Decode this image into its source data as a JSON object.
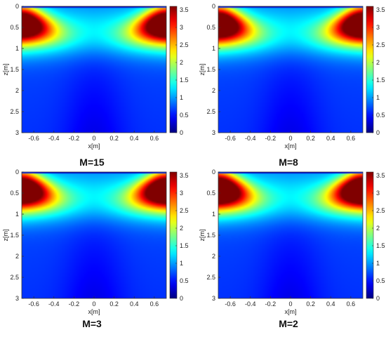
{
  "chart_data": [
    {
      "type": "heatmap",
      "title": "M=15",
      "xlabel": "x[m]",
      "ylabel": "z[m]",
      "xlim": [
        -0.72,
        0.72
      ],
      "ylim": [
        0,
        3
      ],
      "xticks": [
        "-0.6",
        "-0.4",
        "-0.2",
        "0",
        "0.2",
        "0.4",
        "0.6"
      ],
      "yticks": [
        "0",
        "0.5",
        "1",
        "1.5",
        "2",
        "2.5",
        "3"
      ],
      "colorbar": {
        "min": 0,
        "max": 3.6,
        "ticks": [
          "0",
          "0.5",
          "1",
          "1.5",
          "2",
          "2.5",
          "3",
          "3.5"
        ]
      },
      "colormap": "jet",
      "peak_value": 3.2,
      "peak_locations": [
        [
          -0.68,
          0.4
        ],
        [
          0.68,
          0.4
        ]
      ]
    },
    {
      "type": "heatmap",
      "title": "M=8",
      "xlabel": "x[m]",
      "ylabel": "z[m]",
      "xlim": [
        -0.72,
        0.72
      ],
      "ylim": [
        0,
        3
      ],
      "xticks": [
        "-0.6",
        "-0.4",
        "-0.2",
        "0",
        "0.2",
        "0.4",
        "0.6"
      ],
      "yticks": [
        "0",
        "0.5",
        "1",
        "1.5",
        "2",
        "2.5",
        "3"
      ],
      "colorbar": {
        "min": 0,
        "max": 3.6,
        "ticks": [
          "0",
          "0.5",
          "1",
          "1.5",
          "2",
          "2.5",
          "3",
          "3.5"
        ]
      },
      "colormap": "jet",
      "peak_value": 3.25,
      "peak_locations": [
        [
          -0.68,
          0.4
        ],
        [
          0.68,
          0.4
        ]
      ]
    },
    {
      "type": "heatmap",
      "title": "M=3",
      "xlabel": "x[m]",
      "ylabel": "z[m]",
      "xlim": [
        -0.72,
        0.72
      ],
      "ylim": [
        0,
        3
      ],
      "xticks": [
        "-0.6",
        "-0.4",
        "-0.2",
        "0",
        "0.2",
        "0.4",
        "0.6"
      ],
      "yticks": [
        "0",
        "0.5",
        "1",
        "1.5",
        "2",
        "2.5",
        "3"
      ],
      "colorbar": {
        "min": 0,
        "max": 3.6,
        "ticks": [
          "0",
          "0.5",
          "1",
          "1.5",
          "2",
          "2.5",
          "3",
          "3.5"
        ]
      },
      "colormap": "jet",
      "peak_value": 3.35,
      "peak_locations": [
        [
          -0.68,
          0.38
        ],
        [
          0.68,
          0.38
        ]
      ]
    },
    {
      "type": "heatmap",
      "title": "M=2",
      "xlabel": "x[m]",
      "ylabel": "z[m]",
      "xlim": [
        -0.72,
        0.72
      ],
      "ylim": [
        0,
        3
      ],
      "xticks": [
        "-0.6",
        "-0.4",
        "-0.2",
        "0",
        "0.2",
        "0.4",
        "0.6"
      ],
      "yticks": [
        "0",
        "0.5",
        "1",
        "1.5",
        "2",
        "2.5",
        "3"
      ],
      "colorbar": {
        "min": 0,
        "max": 3.6,
        "ticks": [
          "0",
          "0.5",
          "1",
          "1.5",
          "2",
          "2.5",
          "3",
          "3.5"
        ]
      },
      "colormap": "jet",
      "peak_value": 3.5,
      "peak_locations": [
        [
          -0.68,
          0.35
        ],
        [
          0.68,
          0.35
        ]
      ]
    }
  ]
}
